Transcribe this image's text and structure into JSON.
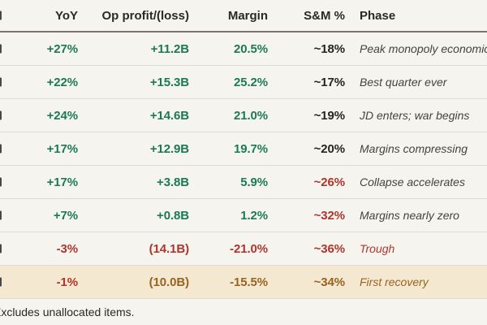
{
  "colors": {
    "page_bg": "#f6f4ee",
    "header_text": "#2b2925",
    "green": "#1b7a56",
    "dark": "#26241f",
    "red": "#ae352d",
    "gold": "#966420",
    "phase_gray": "#45433d",
    "highlight_bg": "#f4e8d1",
    "row_border": "#dddbd3",
    "header_border": "#77756e",
    "fragment": "#4a4843"
  },
  "table": {
    "columns": [
      {
        "id": "yoy",
        "label": "YoY",
        "align": "right"
      },
      {
        "id": "op",
        "label": "Op profit/(loss)",
        "align": "right"
      },
      {
        "id": "margin",
        "label": "Margin",
        "align": "right"
      },
      {
        "id": "sm",
        "label": "S&M %",
        "align": "right"
      },
      {
        "id": "phase",
        "label": "Phase",
        "align": "left"
      }
    ],
    "rows": [
      {
        "highlight": false,
        "cells": [
          {
            "text": "+27%",
            "tone": "green"
          },
          {
            "text": "+11.2B",
            "tone": "green"
          },
          {
            "text": "20.5%",
            "tone": "green"
          },
          {
            "text": "~18%",
            "tone": "dark"
          },
          {
            "text": "Peak monopoly economics",
            "tone": "phase_gray",
            "italic": true
          }
        ]
      },
      {
        "highlight": false,
        "cells": [
          {
            "text": "+22%",
            "tone": "green"
          },
          {
            "text": "+15.3B",
            "tone": "green"
          },
          {
            "text": "25.2%",
            "tone": "green"
          },
          {
            "text": "~17%",
            "tone": "dark"
          },
          {
            "text": "Best quarter ever",
            "tone": "phase_gray",
            "italic": true
          }
        ]
      },
      {
        "highlight": false,
        "cells": [
          {
            "text": "+24%",
            "tone": "green"
          },
          {
            "text": "+14.6B",
            "tone": "green"
          },
          {
            "text": "21.0%",
            "tone": "green"
          },
          {
            "text": "~19%",
            "tone": "dark"
          },
          {
            "text": "JD enters; war begins",
            "tone": "phase_gray",
            "italic": true
          }
        ]
      },
      {
        "highlight": false,
        "cells": [
          {
            "text": "+17%",
            "tone": "green"
          },
          {
            "text": "+12.9B",
            "tone": "green"
          },
          {
            "text": "19.7%",
            "tone": "green"
          },
          {
            "text": "~20%",
            "tone": "dark"
          },
          {
            "text": "Margins compressing",
            "tone": "phase_gray",
            "italic": true
          }
        ]
      },
      {
        "highlight": false,
        "cells": [
          {
            "text": "+17%",
            "tone": "green"
          },
          {
            "text": "+3.8B",
            "tone": "green"
          },
          {
            "text": "5.9%",
            "tone": "green"
          },
          {
            "text": "~26%",
            "tone": "red"
          },
          {
            "text": "Collapse accelerates",
            "tone": "phase_gray",
            "italic": true
          }
        ]
      },
      {
        "highlight": false,
        "cells": [
          {
            "text": "+7%",
            "tone": "green"
          },
          {
            "text": "+0.8B",
            "tone": "green"
          },
          {
            "text": "1.2%",
            "tone": "green"
          },
          {
            "text": "~32%",
            "tone": "red"
          },
          {
            "text": "Margins nearly zero",
            "tone": "phase_gray",
            "italic": true
          }
        ]
      },
      {
        "highlight": false,
        "cells": [
          {
            "text": "-3%",
            "tone": "red"
          },
          {
            "text": "(14.1B)",
            "tone": "red"
          },
          {
            "text": "-21.0%",
            "tone": "red"
          },
          {
            "text": "~36%",
            "tone": "red"
          },
          {
            "text": "Trough",
            "tone": "red",
            "italic": true
          }
        ]
      },
      {
        "highlight": true,
        "cells": [
          {
            "text": "-1%",
            "tone": "red"
          },
          {
            "text": "(10.0B)",
            "tone": "gold"
          },
          {
            "text": "-15.5%",
            "tone": "gold"
          },
          {
            "text": "~34%",
            "tone": "gold"
          },
          {
            "text": "First recovery",
            "tone": "gold",
            "italic": true
          }
        ]
      }
    ]
  },
  "footnote": "Excludes unallocated items.",
  "left_column_clipped": true,
  "chart_data": {
    "type": "table",
    "title": "",
    "columns": [
      "YoY",
      "Op profit/(loss)",
      "Margin",
      "S&M %",
      "Phase"
    ],
    "rows": [
      [
        "+27%",
        "+11.2B",
        "20.5%",
        "~18%",
        "Peak monopoly economics"
      ],
      [
        "+22%",
        "+15.3B",
        "25.2%",
        "~17%",
        "Best quarter ever"
      ],
      [
        "+24%",
        "+14.6B",
        "21.0%",
        "~19%",
        "JD enters; war begins"
      ],
      [
        "+17%",
        "+12.9B",
        "19.7%",
        "~20%",
        "Margins compressing"
      ],
      [
        "+17%",
        "+3.8B",
        "5.9%",
        "~26%",
        "Collapse accelerates"
      ],
      [
        "+7%",
        "+0.8B",
        "1.2%",
        "~32%",
        "Margins nearly zero"
      ],
      [
        "-3%",
        "(14.1B)",
        "-21.0%",
        "~36%",
        "Trough"
      ],
      [
        "-1%",
        "(10.0B)",
        "-15.5%",
        "~34%",
        "First recovery"
      ]
    ],
    "footnote": "Excludes unallocated items.",
    "layout_hints": {
      "highlighted_row_index": 7,
      "leftmost_period_column_clipped_off_image": true,
      "positive_color": "#1b7a56",
      "negative_color": "#ae352d",
      "recovery_color": "#966420"
    }
  }
}
